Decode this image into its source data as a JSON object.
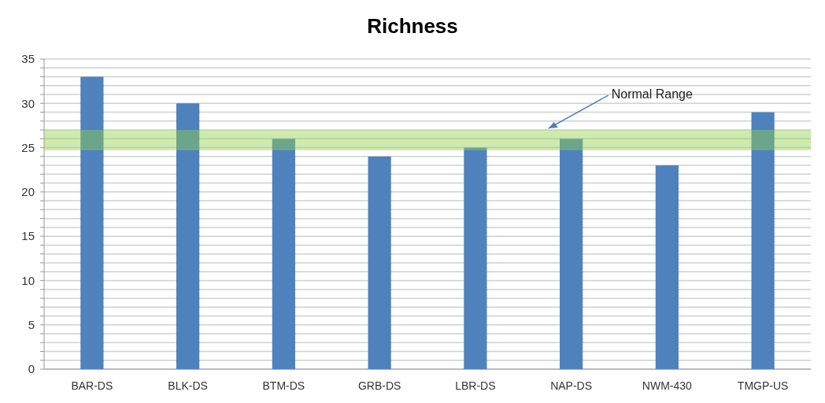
{
  "chart_data": {
    "type": "bar",
    "title": "Richness",
    "categories": [
      "BAR-DS",
      "BLK-DS",
      "BTM-DS",
      "GRB-DS",
      "LBR-DS",
      "NAP-DS",
      "NWM-430",
      "TMGP-US"
    ],
    "values": [
      33,
      30,
      26,
      24,
      25,
      26,
      23,
      29
    ],
    "color": "#4f81bd",
    "ylim": [
      0,
      35
    ],
    "yticks": [
      0,
      {
        "value": 1,
        "label": null
      },
      {
        "value": 2,
        "label": null
      },
      {
        "value": 3,
        "label": null
      },
      {
        "value": 4,
        "label": null
      },
      5,
      {
        "value": 6,
        "label": null
      },
      {
        "value": 7,
        "label": null
      },
      {
        "value": 8,
        "label": null
      },
      {
        "value": 9,
        "label": null
      },
      10,
      {
        "value": 11,
        "label": null
      },
      {
        "value": 12,
        "label": null
      },
      {
        "value": 13,
        "label": null
      },
      {
        "value": 14,
        "label": null
      },
      15,
      {
        "value": 16,
        "label": null
      },
      {
        "value": 17,
        "label": null
      },
      {
        "value": 18,
        "label": null
      },
      {
        "value": 19,
        "label": null
      },
      20,
      {
        "value": 21,
        "label": null
      },
      {
        "value": 22,
        "label": null
      },
      {
        "value": 23,
        "label": null
      },
      {
        "value": 24,
        "label": null
      },
      25,
      {
        "value": 26,
        "label": null
      },
      {
        "value": 27,
        "label": null
      },
      {
        "value": 28,
        "label": null
      },
      {
        "value": 29,
        "label": null
      },
      30,
      {
        "value": 31,
        "label": null
      },
      {
        "value": 32,
        "label": null
      },
      {
        "value": 33,
        "label": null
      },
      {
        "value": 34,
        "label": null
      },
      35
    ],
    "grid": "y",
    "bands": [
      {
        "axis": "y",
        "from": 24.7,
        "to": 27,
        "label": "Normal Range",
        "color": "#92d050"
      }
    ]
  }
}
